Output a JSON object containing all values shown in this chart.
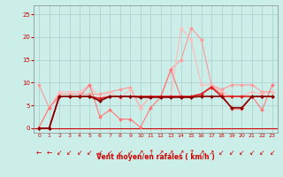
{
  "background_color": "#cceee8",
  "grid_color": "#aacccc",
  "xlabel": "Vent moyen/en rafales ( km/h )",
  "xlabel_color": "#cc0000",
  "tick_color": "#cc0000",
  "yticks": [
    0,
    5,
    10,
    15,
    20,
    25
  ],
  "xtick_labels": [
    "0",
    "1",
    "2",
    "3",
    "4",
    "5",
    "6",
    "7",
    "8",
    "9",
    "10",
    "11",
    "12",
    "13",
    "14",
    "15",
    "16",
    "17",
    "18",
    "19",
    "20",
    "21",
    "22",
    "23"
  ],
  "xlim": [
    -0.5,
    23.5
  ],
  "ylim": [
    -1,
    27
  ],
  "series": [
    {
      "x": [
        0,
        1,
        2,
        3,
        4,
        5,
        6,
        7,
        8,
        9,
        10,
        11,
        12,
        13,
        14,
        15,
        16,
        17,
        18,
        19,
        20,
        21,
        22,
        23
      ],
      "y": [
        9.5,
        4.5,
        7.5,
        7.5,
        7.5,
        7.5,
        7.5,
        8.0,
        8.5,
        9.0,
        4.5,
        7.0,
        7.0,
        13.0,
        15.0,
        22.0,
        19.5,
        9.5,
        8.5,
        9.5,
        9.5,
        9.5,
        8.0,
        8.0
      ],
      "color": "#ff9999",
      "linewidth": 0.8,
      "marker": "D",
      "markersize": 2.0,
      "zorder": 2
    },
    {
      "x": [
        0,
        1,
        2,
        3,
        4,
        5,
        6,
        7,
        8,
        9,
        10,
        11,
        12,
        13,
        14,
        15,
        16,
        17,
        18,
        19,
        20,
        21,
        22,
        23
      ],
      "y": [
        0.2,
        4.5,
        8.0,
        8.0,
        8.0,
        9.5,
        6.5,
        8.0,
        6.5,
        8.5,
        4.5,
        7.0,
        7.0,
        7.0,
        22.0,
        19.5,
        9.5,
        9.5,
        8.0,
        7.0,
        7.0,
        8.0,
        7.5,
        8.0
      ],
      "color": "#ffbbbb",
      "linewidth": 0.8,
      "marker": "D",
      "markersize": 2.0,
      "zorder": 2
    },
    {
      "x": [
        0,
        1,
        2,
        3,
        4,
        5,
        6,
        7,
        8,
        9,
        10,
        11,
        12,
        13,
        14,
        15,
        16,
        17,
        18,
        19,
        20,
        21,
        22,
        23
      ],
      "y": [
        0.2,
        4.5,
        7.0,
        7.0,
        7.0,
        9.5,
        2.5,
        4.0,
        2.0,
        2.0,
        0.2,
        4.5,
        6.8,
        12.8,
        6.8,
        6.8,
        7.5,
        9.2,
        7.5,
        4.2,
        4.2,
        7.0,
        4.0,
        9.5
      ],
      "color": "#ff7777",
      "linewidth": 0.8,
      "marker": "D",
      "markersize": 2.0,
      "zorder": 2
    },
    {
      "x": [
        0,
        1,
        2,
        3,
        4,
        5,
        6,
        7,
        8,
        9,
        10,
        11,
        12,
        13,
        14,
        15,
        16,
        17,
        18,
        19,
        20,
        21,
        22,
        23
      ],
      "y": [
        0.0,
        0.0,
        7.0,
        7.0,
        7.0,
        7.0,
        6.5,
        7.0,
        7.0,
        7.0,
        7.0,
        7.0,
        7.0,
        7.0,
        7.0,
        7.0,
        7.5,
        9.0,
        7.0,
        7.0,
        7.0,
        7.0,
        7.0,
        7.0
      ],
      "color": "#dd2222",
      "linewidth": 1.2,
      "marker": "D",
      "markersize": 2.0,
      "zorder": 4
    },
    {
      "x": [
        0,
        1,
        2,
        3,
        4,
        5,
        6,
        7,
        8,
        9,
        10,
        11,
        12,
        13,
        14,
        15,
        16,
        17,
        18,
        19,
        20,
        21,
        22,
        23
      ],
      "y": [
        0.0,
        0.0,
        7.0,
        7.0,
        7.0,
        7.0,
        6.0,
        7.0,
        7.0,
        7.0,
        6.8,
        6.8,
        6.8,
        6.8,
        6.8,
        6.8,
        7.0,
        7.0,
        7.0,
        4.5,
        4.5,
        7.0,
        7.0,
        7.0
      ],
      "color": "#880000",
      "linewidth": 1.2,
      "marker": "D",
      "markersize": 2.0,
      "zorder": 5
    }
  ],
  "arrow_labels": [
    "←",
    "←",
    "↙",
    "↙",
    "↙",
    "↙",
    "↙",
    "↙",
    "↙",
    "↙",
    "↗",
    "↑",
    "↗",
    "↗",
    "↗",
    "↑",
    "↗",
    "↗",
    "↙",
    "↙",
    "↙",
    "↙",
    "↙",
    "↙"
  ],
  "arrow_color": "#cc0000",
  "arrow_fontsize": 5.5
}
